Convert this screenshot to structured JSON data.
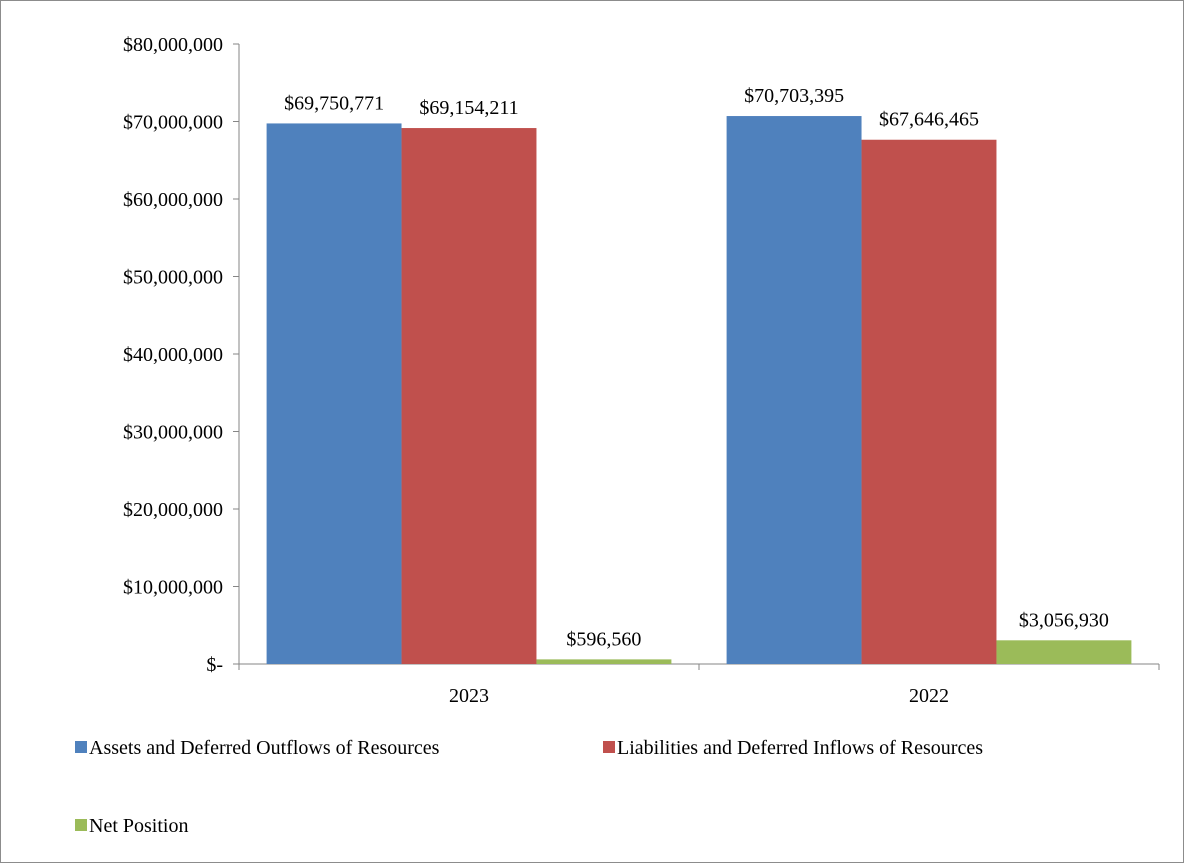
{
  "chart_data": {
    "type": "bar",
    "categories": [
      "2023",
      "2022"
    ],
    "series": [
      {
        "name": "Assets and Deferred Outflows of Resources",
        "color": "#4f81bd",
        "values": [
          69750771,
          70703395
        ],
        "labels": [
          "$69,750,771",
          "$70,703,395"
        ]
      },
      {
        "name": "Liabilities and Deferred Inflows of Resources",
        "color": "#c0504d",
        "values": [
          69154211,
          67646465
        ],
        "labels": [
          "$69,154,211",
          "$67,646,465"
        ]
      },
      {
        "name": "Net Position",
        "color": "#9bbb59",
        "values": [
          596560,
          3056930
        ],
        "labels": [
          "$596,560",
          "$3,056,930"
        ]
      }
    ],
    "ylim": [
      0,
      80000000
    ],
    "yticks": [
      0,
      10000000,
      20000000,
      30000000,
      40000000,
      50000000,
      60000000,
      70000000,
      80000000
    ],
    "ytick_labels": [
      "$-",
      "$10,000,000",
      "$20,000,000",
      "$30,000,000",
      "$40,000,000",
      "$50,000,000",
      "$60,000,000",
      "$70,000,000",
      "$80,000,000"
    ],
    "grid": false,
    "legend_position": "bottom"
  }
}
